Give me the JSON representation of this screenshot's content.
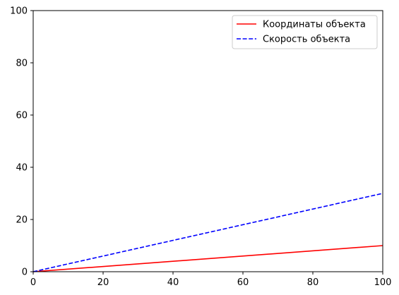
{
  "chart_data": {
    "type": "line",
    "title": "",
    "xlabel": "",
    "ylabel": "",
    "xlim": [
      0,
      100
    ],
    "ylim": [
      0,
      100
    ],
    "xticks": [
      0,
      20,
      40,
      60,
      80,
      100
    ],
    "yticks": [
      0,
      20,
      40,
      60,
      80,
      100
    ],
    "grid": false,
    "legend_position": "top-right",
    "series": [
      {
        "name": "Координаты объекта",
        "x": [
          0,
          100
        ],
        "y": [
          0,
          10
        ],
        "color": "#ff0000",
        "style": "solid"
      },
      {
        "name": "Скорость объекта",
        "x": [
          0,
          100
        ],
        "y": [
          0,
          30
        ],
        "color": "#0000ff",
        "style": "dashed"
      }
    ]
  }
}
